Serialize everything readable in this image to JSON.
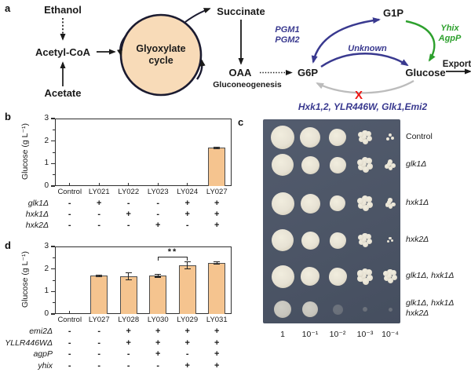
{
  "figure": {
    "panels": {
      "a": "a",
      "b": "b",
      "c": "c",
      "d": "d"
    }
  },
  "panel_a": {
    "nodes": {
      "ethanol": "Ethanol",
      "acetyl_coa": "Acetyl-CoA",
      "acetate": "Acetate",
      "cycle_line1": "Glyoxylate",
      "cycle_line2": "cycle",
      "succinate": "Succinate",
      "oaa": "OAA",
      "gluconeogenesis": "Gluconeogenesis",
      "g6p": "G6P",
      "g1p": "G1P",
      "glucose": "Glucose",
      "export": "Export"
    },
    "enzymes": {
      "pgm1": "PGM1",
      "pgm2": "PGM2",
      "unknown": "Unknown",
      "yhix": "Yhix",
      "agpp": "AgpP",
      "blocked_list": "Hxk1,2, YLR446W, Glk1,Emi2",
      "blocked_mark": "X"
    },
    "colors": {
      "blue": "#39398F",
      "green": "#2DA02D",
      "red": "#EE1512",
      "gray": "#BCBCBC",
      "black": "#1A1A1A",
      "outline": "#1B1B30",
      "cycle_fill": "#F8DBB8"
    }
  },
  "chart_data": [
    {
      "panel": "b",
      "type": "bar",
      "title": "",
      "xlabel": "",
      "ylabel": "Glucose (g L⁻¹)",
      "ylim": [
        0,
        3
      ],
      "yticks": [
        0,
        1,
        2,
        3
      ],
      "categories": [
        "Control",
        "LY021",
        "LY022",
        "LY023",
        "LY024",
        "LY027"
      ],
      "values": [
        0,
        0,
        0,
        0,
        0,
        1.7
      ],
      "errors": [
        0,
        0,
        0,
        0,
        0,
        0.04
      ],
      "bar_color": "#F5C48F",
      "bar_border": "#4D4D4D",
      "genotype_rows": [
        {
          "label": "glk1Δ",
          "italic": true,
          "values": [
            "-",
            "+",
            "-",
            "-",
            "+",
            "+"
          ]
        },
        {
          "label": "hxk1Δ",
          "italic": true,
          "values": [
            "-",
            "-",
            "+",
            "-",
            "+",
            "+"
          ]
        },
        {
          "label": "hxk2Δ",
          "italic": true,
          "values": [
            "-",
            "-",
            "-",
            "+",
            "-",
            "+"
          ]
        }
      ]
    },
    {
      "panel": "d",
      "type": "bar",
      "title": "",
      "xlabel": "",
      "ylabel": "Glucose (g L⁻¹)",
      "ylim": [
        0,
        3
      ],
      "yticks": [
        0,
        1,
        2,
        3
      ],
      "categories": [
        "Control",
        "LY027",
        "LY028",
        "LY030",
        "LY029",
        "LY031"
      ],
      "values": [
        0,
        1.7,
        1.67,
        1.7,
        2.16,
        2.27
      ],
      "errors": [
        0,
        0.04,
        0.16,
        0.06,
        0.16,
        0.06
      ],
      "significance": {
        "from": "LY030",
        "to": "LY029",
        "label": "**",
        "y": 2.55
      },
      "bar_color": "#F5C48F",
      "bar_border": "#4D4D4D",
      "genotype_rows": [
        {
          "label": "emi2Δ",
          "italic": true,
          "values": [
            "-",
            "-",
            "+",
            "+",
            "+",
            "+"
          ]
        },
        {
          "label": "YLLR446WΔ",
          "italic": true,
          "values": [
            "-",
            "-",
            "+",
            "+",
            "+",
            "+"
          ]
        },
        {
          "label": "agpP",
          "italic": true,
          "values": [
            "-",
            "-",
            "-",
            "+",
            "-",
            "+"
          ]
        },
        {
          "label": "yhix",
          "italic": true,
          "values": [
            "-",
            "-",
            "-",
            "-",
            "+",
            "+"
          ]
        }
      ]
    }
  ],
  "panel_c": {
    "plate_colors": {
      "agar": "#4C5566",
      "colony": "#E7E2D4"
    },
    "dilution_labels": [
      "1",
      "10⁻¹",
      "10⁻²",
      "10⁻³",
      "10⁻⁴"
    ],
    "rows": [
      {
        "label_lines": [
          "Control"
        ],
        "italic": false,
        "spots": [
          {
            "d": 30,
            "t": "solid"
          },
          {
            "d": 26,
            "t": "solid"
          },
          {
            "d": 22,
            "t": "rough"
          },
          {
            "d": 17,
            "t": "cluster"
          },
          {
            "d": 10,
            "t": "cluster"
          }
        ]
      },
      {
        "label_lines": [
          "glk1Δ"
        ],
        "italic": true,
        "spots": [
          {
            "d": 28,
            "t": "solid"
          },
          {
            "d": 23,
            "t": "solid"
          },
          {
            "d": 21,
            "t": "rough"
          },
          {
            "d": 19,
            "t": "cluster"
          },
          {
            "d": 14,
            "t": "cluster"
          }
        ]
      },
      {
        "label_lines": [
          "hxk1Δ"
        ],
        "italic": true,
        "spots": [
          {
            "d": 29,
            "t": "solid"
          },
          {
            "d": 25,
            "t": "solid"
          },
          {
            "d": 20,
            "t": "rough"
          },
          {
            "d": 19,
            "t": "cluster"
          },
          {
            "d": 13,
            "t": "cluster"
          }
        ]
      },
      {
        "label_lines": [
          "hxk2Δ"
        ],
        "italic": true,
        "spots": [
          {
            "d": 28,
            "t": "solid"
          },
          {
            "d": 23,
            "t": "solid"
          },
          {
            "d": 21,
            "t": "rough"
          },
          {
            "d": 17,
            "t": "cluster"
          },
          {
            "d": 8,
            "t": "cluster"
          }
        ]
      },
      {
        "label_lines": [
          "glk1Δ, hxk1Δ"
        ],
        "italic": true,
        "spots": [
          {
            "d": 29,
            "t": "solid"
          },
          {
            "d": 24,
            "t": "rough"
          },
          {
            "d": 23,
            "t": "rough"
          },
          {
            "d": 20,
            "t": "cluster"
          },
          {
            "d": 17,
            "t": "cluster"
          }
        ]
      },
      {
        "label_lines": [
          "glk1Δ, hxk1Δ",
          "hxk2Δ"
        ],
        "italic": true,
        "spots": [
          {
            "d": 22,
            "t": "dim"
          },
          {
            "d": 20,
            "t": "dim"
          },
          {
            "d": 13,
            "t": "faint"
          },
          {
            "d": 6,
            "t": "faint"
          },
          {
            "d": 5,
            "t": "faint"
          }
        ]
      }
    ]
  }
}
